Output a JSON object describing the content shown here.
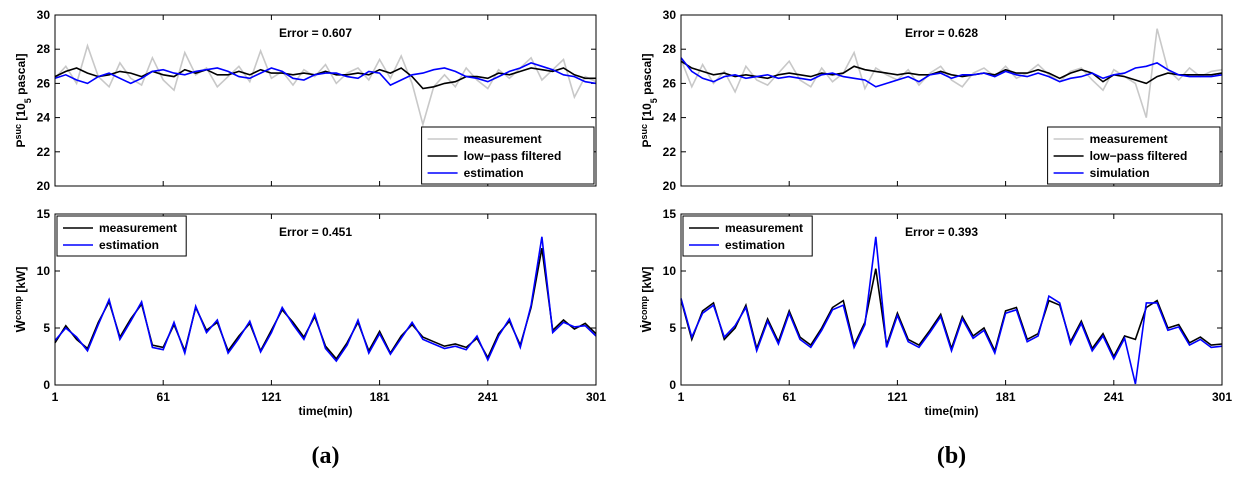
{
  "chart_data": [
    {
      "type": "line",
      "annotation": "Error = 0.607",
      "ylabel": [
        "P",
        "suc",
        " [10",
        "5",
        " pascal]"
      ],
      "legend": "lower right",
      "xlim": [
        1,
        301
      ],
      "xticks": [
        1,
        61,
        121,
        181,
        241,
        301
      ],
      "ylim": [
        20,
        30
      ],
      "yticks": [
        20,
        22,
        24,
        26,
        28,
        30
      ],
      "x": [
        1,
        7,
        13,
        19,
        25,
        31,
        37,
        43,
        49,
        55,
        61,
        67,
        73,
        79,
        85,
        91,
        97,
        103,
        109,
        115,
        121,
        127,
        133,
        139,
        145,
        151,
        157,
        163,
        169,
        175,
        181,
        187,
        193,
        199,
        205,
        211,
        217,
        223,
        229,
        235,
        241,
        247,
        253,
        259,
        265,
        271,
        277,
        283,
        289,
        295,
        301
      ],
      "series": [
        {
          "name": "measurement",
          "color": "#c8c8c8",
          "values": [
            26.3,
            27.0,
            26.0,
            28.2,
            26.4,
            25.8,
            27.2,
            26.3,
            25.9,
            27.5,
            26.2,
            25.6,
            27.8,
            26.5,
            26.9,
            25.8,
            26.4,
            27.0,
            26.1,
            27.9,
            26.3,
            26.7,
            25.9,
            26.8,
            26.4,
            27.1,
            26.0,
            26.6,
            26.9,
            26.2,
            27.4,
            26.3,
            27.6,
            26.0,
            23.6,
            25.8,
            26.5,
            25.8,
            26.9,
            26.2,
            25.7,
            26.8,
            26.3,
            26.9,
            27.5,
            26.2,
            26.8,
            27.4,
            25.2,
            26.4,
            26.1
          ]
        },
        {
          "name": "low−pass filtered",
          "color": "#000000",
          "values": [
            26.4,
            26.7,
            26.9,
            26.6,
            26.4,
            26.5,
            26.7,
            26.6,
            26.4,
            26.7,
            26.5,
            26.4,
            26.8,
            26.6,
            26.8,
            26.5,
            26.5,
            26.7,
            26.5,
            26.8,
            26.6,
            26.6,
            26.5,
            26.6,
            26.5,
            26.7,
            26.5,
            26.5,
            26.6,
            26.5,
            26.8,
            26.6,
            26.9,
            26.4,
            25.7,
            25.8,
            26.0,
            26.1,
            26.4,
            26.4,
            26.3,
            26.6,
            26.5,
            26.7,
            26.9,
            26.8,
            26.7,
            26.9,
            26.5,
            26.3,
            26.3
          ]
        },
        {
          "name": "estimation",
          "color": "#0000ff",
          "values": [
            26.3,
            26.5,
            26.2,
            26.0,
            26.4,
            26.6,
            26.3,
            26.0,
            26.3,
            26.7,
            26.8,
            26.6,
            26.5,
            26.7,
            26.8,
            26.9,
            26.7,
            26.4,
            26.3,
            26.6,
            26.9,
            26.7,
            26.3,
            26.2,
            26.5,
            26.6,
            26.6,
            26.4,
            26.3,
            26.7,
            26.6,
            25.9,
            26.2,
            26.5,
            26.6,
            26.8,
            26.9,
            26.7,
            26.4,
            26.3,
            26.1,
            26.4,
            26.7,
            26.9,
            27.2,
            27.0,
            26.8,
            26.5,
            26.4,
            26.1,
            26.0
          ]
        }
      ]
    },
    {
      "type": "line",
      "annotation": "Error = 0.451",
      "ylabel": [
        "Ẇ",
        "comp",
        " [kW]"
      ],
      "xlabel": "time(min)",
      "caption": "(a)",
      "legend": "upper left",
      "xlim": [
        1,
        301
      ],
      "xticks": [
        1,
        61,
        121,
        181,
        241,
        301
      ],
      "ylim": [
        0,
        15
      ],
      "yticks": [
        0,
        5,
        10,
        15
      ],
      "x": [
        1,
        7,
        13,
        19,
        25,
        31,
        37,
        43,
        49,
        55,
        61,
        67,
        73,
        79,
        85,
        91,
        97,
        103,
        109,
        115,
        121,
        127,
        133,
        139,
        145,
        151,
        157,
        163,
        169,
        175,
        181,
        187,
        193,
        199,
        205,
        211,
        217,
        223,
        229,
        235,
        241,
        247,
        253,
        259,
        265,
        271,
        277,
        283,
        289,
        295,
        301
      ],
      "series": [
        {
          "name": "measurement",
          "color": "#000000",
          "values": [
            3.7,
            5.2,
            4.0,
            3.2,
            5.5,
            7.3,
            4.2,
            5.8,
            7.1,
            3.5,
            3.3,
            5.3,
            3.0,
            6.8,
            4.8,
            5.5,
            3.0,
            4.3,
            5.4,
            3.0,
            4.8,
            6.6,
            5.5,
            4.2,
            6.0,
            3.4,
            2.3,
            3.7,
            5.5,
            3.0,
            4.7,
            2.8,
            4.3,
            5.3,
            4.2,
            3.8,
            3.4,
            3.6,
            3.3,
            4.1,
            2.4,
            4.5,
            5.6,
            3.5,
            6.8,
            12.0,
            4.8,
            5.7,
            4.9,
            5.4,
            4.5
          ]
        },
        {
          "name": "estimation",
          "color": "#0000ff",
          "values": [
            3.9,
            5.0,
            4.2,
            3.0,
            5.3,
            7.5,
            4.0,
            5.6,
            7.3,
            3.3,
            3.1,
            5.5,
            2.8,
            6.9,
            4.6,
            5.7,
            2.8,
            4.1,
            5.6,
            2.9,
            4.6,
            6.8,
            5.3,
            4.0,
            6.2,
            3.2,
            2.1,
            3.5,
            5.7,
            2.8,
            4.5,
            2.7,
            4.1,
            5.5,
            4.0,
            3.6,
            3.2,
            3.4,
            3.1,
            4.3,
            2.2,
            4.3,
            5.8,
            3.3,
            7.0,
            13.0,
            4.6,
            5.5,
            5.1,
            5.2,
            4.3
          ]
        }
      ]
    },
    {
      "type": "line",
      "annotation": "Error = 0.628",
      "ylabel": [
        "P",
        "suc",
        " [10",
        "5",
        " pascal]"
      ],
      "legend": "lower right",
      "xlim": [
        1,
        301
      ],
      "xticks": [
        1,
        61,
        121,
        181,
        241,
        301
      ],
      "ylim": [
        20,
        30
      ],
      "yticks": [
        20,
        22,
        24,
        26,
        28,
        30
      ],
      "x": [
        1,
        7,
        13,
        19,
        25,
        31,
        37,
        43,
        49,
        55,
        61,
        67,
        73,
        79,
        85,
        91,
        97,
        103,
        109,
        115,
        121,
        127,
        133,
        139,
        145,
        151,
        157,
        163,
        169,
        175,
        181,
        187,
        193,
        199,
        205,
        211,
        217,
        223,
        229,
        235,
        241,
        247,
        253,
        259,
        265,
        271,
        277,
        283,
        289,
        295,
        301
      ],
      "series": [
        {
          "name": "measurement",
          "color": "#c8c8c8",
          "values": [
            27.4,
            25.8,
            27.1,
            26.0,
            26.7,
            25.5,
            27.0,
            26.2,
            25.9,
            26.6,
            27.3,
            26.2,
            25.8,
            26.9,
            26.1,
            26.6,
            27.8,
            25.7,
            26.9,
            26.5,
            26.2,
            26.8,
            25.9,
            26.6,
            27.0,
            26.2,
            25.8,
            26.6,
            26.9,
            26.4,
            27.0,
            26.3,
            26.6,
            27.1,
            26.5,
            26.1,
            26.7,
            26.9,
            26.2,
            25.6,
            26.8,
            26.4,
            26.0,
            24.0,
            29.2,
            26.8,
            26.2,
            26.9,
            26.4,
            26.7,
            26.8
          ]
        },
        {
          "name": "low−pass filtered",
          "color": "#000000",
          "values": [
            27.3,
            26.9,
            26.7,
            26.5,
            26.6,
            26.4,
            26.5,
            26.4,
            26.3,
            26.5,
            26.6,
            26.5,
            26.4,
            26.6,
            26.5,
            26.6,
            27.0,
            26.8,
            26.7,
            26.6,
            26.5,
            26.6,
            26.5,
            26.5,
            26.7,
            26.5,
            26.4,
            26.5,
            26.6,
            26.5,
            26.8,
            26.6,
            26.6,
            26.8,
            26.6,
            26.3,
            26.6,
            26.8,
            26.6,
            26.1,
            26.5,
            26.4,
            26.2,
            26.0,
            26.4,
            26.6,
            26.5,
            26.5,
            26.5,
            26.5,
            26.6
          ]
        },
        {
          "name": "simulation",
          "color": "#0000ff",
          "values": [
            27.5,
            26.7,
            26.3,
            26.1,
            26.4,
            26.5,
            26.3,
            26.4,
            26.5,
            26.3,
            26.4,
            26.3,
            26.2,
            26.5,
            26.6,
            26.4,
            26.3,
            26.2,
            25.8,
            26.0,
            26.2,
            26.4,
            26.1,
            26.5,
            26.6,
            26.3,
            26.5,
            26.5,
            26.6,
            26.4,
            26.7,
            26.5,
            26.4,
            26.6,
            26.4,
            26.1,
            26.3,
            26.4,
            26.6,
            26.3,
            26.5,
            26.6,
            26.9,
            27.0,
            27.2,
            26.8,
            26.5,
            26.4,
            26.4,
            26.4,
            26.5
          ]
        }
      ]
    },
    {
      "type": "line",
      "annotation": "Error = 0.393",
      "ylabel": [
        "Ẇ",
        "comp",
        " [kW]"
      ],
      "xlabel": "time(min)",
      "caption": "(b)",
      "legend": "upper left",
      "xlim": [
        1,
        301
      ],
      "xticks": [
        1,
        61,
        121,
        181,
        241,
        301
      ],
      "ylim": [
        0,
        15
      ],
      "yticks": [
        0,
        5,
        10,
        15
      ],
      "x": [
        1,
        7,
        13,
        19,
        25,
        31,
        37,
        43,
        49,
        55,
        61,
        67,
        73,
        79,
        85,
        91,
        97,
        103,
        109,
        115,
        121,
        127,
        133,
        139,
        145,
        151,
        157,
        163,
        169,
        175,
        181,
        187,
        193,
        199,
        205,
        211,
        217,
        223,
        229,
        235,
        241,
        247,
        253,
        259,
        265,
        271,
        277,
        283,
        289,
        295,
        301
      ],
      "series": [
        {
          "name": "measurement",
          "color": "#000000",
          "values": [
            7.5,
            4.0,
            6.5,
            7.2,
            4.0,
            5.0,
            7.0,
            3.2,
            5.8,
            3.8,
            6.5,
            4.2,
            3.5,
            5.0,
            6.8,
            7.4,
            3.5,
            5.5,
            10.2,
            3.5,
            6.3,
            4.0,
            3.5,
            4.8,
            6.2,
            3.2,
            6.0,
            4.3,
            5.0,
            3.0,
            6.5,
            6.8,
            4.0,
            4.5,
            7.4,
            7.0,
            3.8,
            5.6,
            3.2,
            4.5,
            2.5,
            4.3,
            4.0,
            6.8,
            7.4,
            5.0,
            5.3,
            3.7,
            4.2,
            3.5,
            3.6
          ]
        },
        {
          "name": "estimation",
          "color": "#0000ff",
          "values": [
            7.6,
            4.2,
            6.3,
            7.0,
            4.2,
            5.2,
            6.8,
            3.0,
            5.6,
            3.6,
            6.3,
            4.0,
            3.3,
            4.8,
            6.6,
            7.0,
            3.3,
            5.3,
            13.0,
            3.3,
            6.1,
            3.8,
            3.3,
            4.6,
            6.0,
            3.0,
            5.8,
            4.1,
            4.8,
            2.8,
            6.3,
            6.6,
            3.8,
            4.3,
            7.8,
            7.2,
            3.6,
            5.4,
            3.0,
            4.3,
            2.3,
            4.1,
            0.1,
            7.2,
            7.2,
            4.8,
            5.1,
            3.5,
            4.0,
            3.3,
            3.4
          ]
        }
      ]
    }
  ]
}
